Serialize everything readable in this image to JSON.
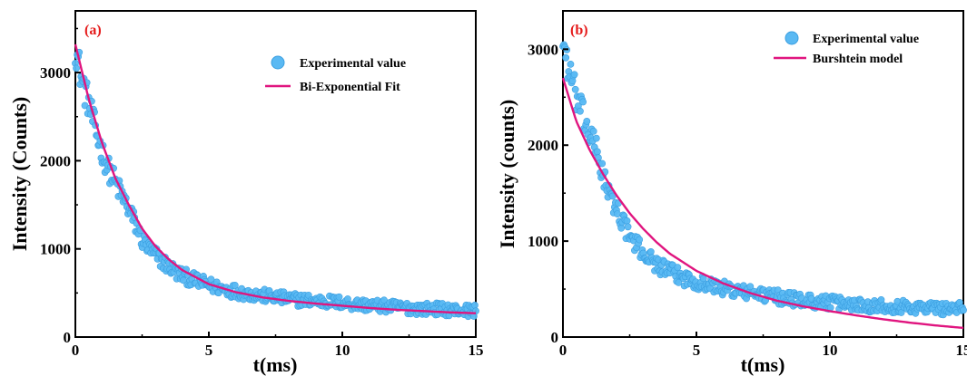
{
  "colors": {
    "points": "#5ab9f3",
    "point_stroke": "#3a9ee0",
    "fit": "#e0157f",
    "panel_label": "#e51b1b",
    "axis": "#000000"
  },
  "chart_data": [
    {
      "type": "scatter",
      "panel_label": "(a)",
      "xlabel": "t(ms)",
      "ylabel": "Intensity (Counts)",
      "xlim": [
        0,
        15
      ],
      "ylim": [
        0,
        3700
      ],
      "xticks": [
        0,
        5,
        10,
        15
      ],
      "yticks": [
        0,
        1000,
        2000,
        3000
      ],
      "legend": {
        "position": "top-right",
        "entries": [
          "Experimental value",
          "Bi-Exponential Fit"
        ]
      },
      "series": [
        {
          "name": "Experimental value",
          "kind": "scatter",
          "x": [
            0.0,
            0.25,
            0.5,
            0.75,
            1.0,
            1.25,
            1.5,
            1.75,
            2.0,
            2.25,
            2.5,
            2.75,
            3.0,
            3.25,
            3.5,
            3.75,
            4.0,
            4.5,
            5.0,
            5.5,
            6.0,
            6.5,
            7.0,
            7.5,
            8.0,
            8.5,
            9.0,
            9.5,
            10.0,
            10.5,
            11.0,
            11.5,
            12.0,
            12.5,
            13.0,
            13.5,
            14.0,
            14.5,
            15.0
          ],
          "y": [
            3300,
            2900,
            2650,
            2350,
            2100,
            1900,
            1750,
            1600,
            1450,
            1280,
            1100,
            1000,
            930,
            860,
            800,
            740,
            700,
            640,
            590,
            550,
            520,
            490,
            470,
            450,
            430,
            420,
            410,
            400,
            390,
            370,
            360,
            350,
            340,
            330,
            320,
            320,
            310,
            300,
            300
          ]
        },
        {
          "name": "Bi-Exponential Fit",
          "kind": "line",
          "x": [
            0,
            0.5,
            1,
            1.5,
            2,
            2.5,
            3,
            3.5,
            4,
            5,
            6,
            7,
            8,
            9,
            10,
            11,
            12,
            13,
            14,
            15
          ],
          "y": [
            3320,
            2700,
            2200,
            1800,
            1500,
            1230,
            1030,
            880,
            760,
            600,
            510,
            450,
            410,
            380,
            355,
            330,
            310,
            295,
            280,
            270
          ]
        }
      ]
    },
    {
      "type": "scatter",
      "panel_label": "(b)",
      "xlabel": "t(ms)",
      "ylabel": "Intensity (counts)",
      "xlim": [
        0,
        15
      ],
      "ylim": [
        0,
        3400
      ],
      "xticks": [
        0,
        5,
        10,
        15
      ],
      "yticks": [
        0,
        1000,
        2000,
        3000
      ],
      "legend": {
        "position": "top-right",
        "entries": [
          "Experimental value",
          "Burshtein model"
        ]
      },
      "series": [
        {
          "name": "Experimental value",
          "kind": "scatter",
          "x": [
            0.0,
            0.25,
            0.5,
            0.75,
            1.0,
            1.25,
            1.5,
            1.75,
            2.0,
            2.25,
            2.5,
            2.75,
            3.0,
            3.25,
            3.5,
            3.75,
            4.0,
            4.5,
            5.0,
            5.5,
            6.0,
            6.5,
            7.0,
            7.5,
            8.0,
            8.5,
            9.0,
            9.5,
            10.0,
            10.5,
            11.0,
            11.5,
            12.0,
            12.5,
            13.0,
            13.5,
            14.0,
            14.5,
            15.0
          ],
          "y": [
            3100,
            2750,
            2500,
            2300,
            2100,
            1950,
            1700,
            1450,
            1350,
            1200,
            1050,
            960,
            880,
            820,
            760,
            720,
            680,
            620,
            580,
            540,
            510,
            480,
            460,
            440,
            420,
            400,
            380,
            370,
            360,
            350,
            340,
            330,
            330,
            320,
            310,
            310,
            300,
            300,
            290
          ]
        },
        {
          "name": "Burshtein model",
          "kind": "line",
          "x": [
            0,
            0.5,
            1,
            1.5,
            2,
            2.5,
            3,
            3.5,
            4,
            5,
            6,
            7,
            8,
            9,
            10,
            11,
            12,
            13,
            14,
            15
          ],
          "y": [
            2700,
            2250,
            1950,
            1700,
            1480,
            1290,
            1130,
            990,
            870,
            690,
            560,
            460,
            380,
            320,
            270,
            225,
            185,
            150,
            120,
            95
          ]
        }
      ]
    }
  ]
}
